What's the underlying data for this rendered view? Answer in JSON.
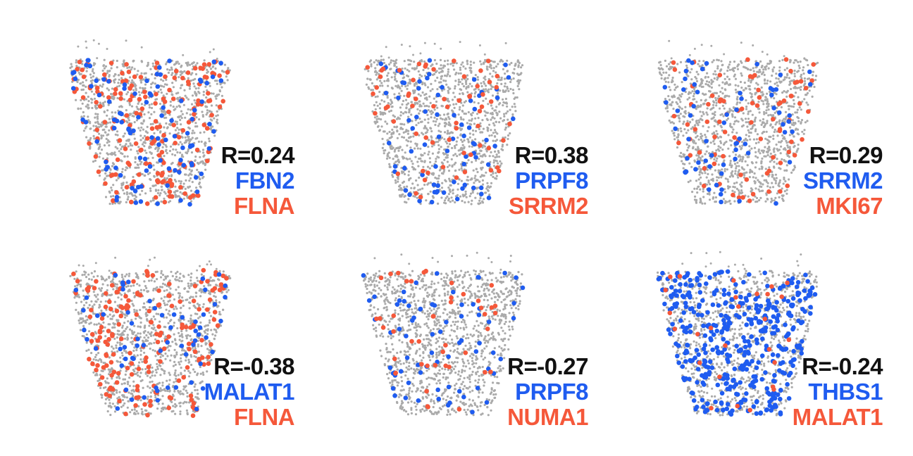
{
  "colors": {
    "background_spots": "#aaaaaa",
    "gene_a": "#1f5cf0",
    "gene_b": "#f5583a",
    "r_text": "#111111"
  },
  "chart_data": [
    {
      "type": "scatter",
      "r_label": "R=0.24",
      "gene_a": "FBN2",
      "gene_b": "FLNA",
      "density_a": 0.55,
      "density_b": 1.0,
      "seed": 11
    },
    {
      "type": "scatter",
      "r_label": "R=0.38",
      "gene_a": "PRPF8",
      "gene_b": "SRRM2",
      "density_a": 0.4,
      "density_b": 0.35,
      "seed": 23
    },
    {
      "type": "scatter",
      "r_label": "R=0.29",
      "gene_a": "SRRM2",
      "gene_b": "MKI67",
      "density_a": 0.35,
      "density_b": 0.45,
      "seed": 37
    },
    {
      "type": "scatter",
      "r_label": "R=-0.38",
      "gene_a": "MALAT1",
      "gene_b": "FLNA",
      "density_a": 0.35,
      "density_b": 1.0,
      "seed": 41
    },
    {
      "type": "scatter",
      "r_label": "R=-0.27",
      "gene_a": "PRPF8",
      "gene_b": "NUMA1",
      "density_a": 0.4,
      "density_b": 0.25,
      "seed": 53
    },
    {
      "type": "scatter",
      "r_label": "R=-0.24",
      "gene_a": "THBS1",
      "gene_b": "MALAT1",
      "density_a": 2.6,
      "density_b": 0.15,
      "seed": 67
    }
  ]
}
